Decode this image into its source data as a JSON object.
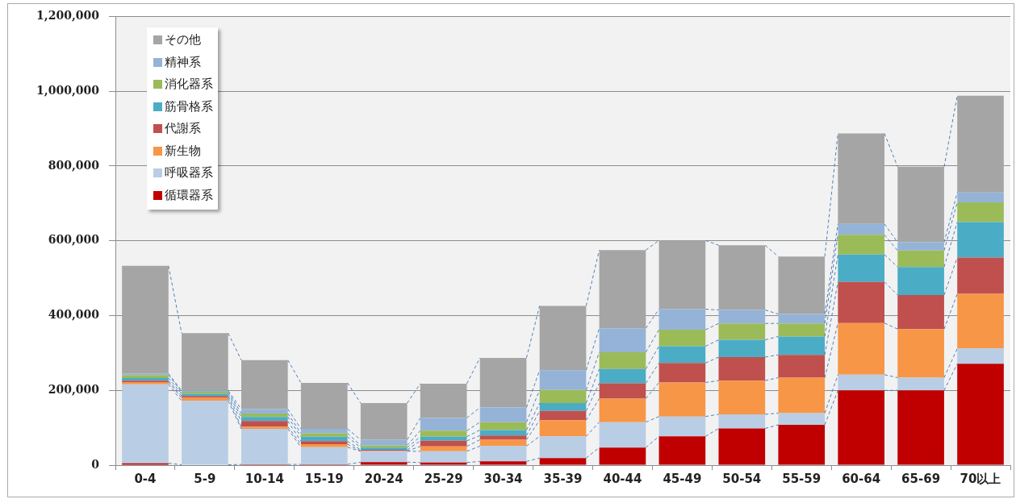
{
  "chart_data": {
    "type": "bar",
    "stacked": true,
    "grid": "y",
    "legend": "top left",
    "categories": [
      "0-4",
      "5-9",
      "10-14",
      "15-19",
      "20-24",
      "25-29",
      "30-34",
      "35-39",
      "40-44",
      "45-49",
      "50-54",
      "55-59",
      "60-64",
      "65-69",
      "70以上"
    ],
    "ylim": [
      0,
      1200000
    ],
    "yticks": [
      0,
      {
        "value": 200000,
        "label": "200,000"
      },
      {
        "value": 400000,
        "label": "400,000"
      },
      {
        "value": 600000,
        "label": "600,000"
      },
      {
        "value": 800000,
        "label": "800,000"
      },
      {
        "value": 1000000,
        "label": "1,000,000"
      },
      {
        "value": 1200000,
        "label": "1,200,000"
      }
    ],
    "series": [
      {
        "name": "循環器系",
        "color": "#c00000",
        "values": [
          5000,
          1000,
          2000,
          2000,
          8000,
          7000,
          10000,
          19000,
          47000,
          77000,
          98000,
          108000,
          200000,
          200000,
          271000
        ]
      },
      {
        "name": "呼吸器系",
        "color": "#b9cde5",
        "values": [
          211000,
          171000,
          95000,
          46000,
          29000,
          30000,
          41000,
          58000,
          68000,
          53000,
          38000,
          31000,
          42000,
          34000,
          41000
        ]
      },
      {
        "name": "新生物",
        "color": "#f79646",
        "values": [
          6000,
          8000,
          6000,
          8000,
          1000,
          13000,
          17000,
          43000,
          63000,
          91000,
          90000,
          95000,
          138000,
          130000,
          146000
        ]
      },
      {
        "name": "代謝系",
        "color": "#c0504d",
        "values": [
          4000,
          5000,
          15000,
          8000,
          3000,
          15000,
          11000,
          25000,
          41000,
          52000,
          63000,
          61000,
          110000,
          91000,
          97000
        ]
      },
      {
        "name": "筋骨格系",
        "color": "#4bacc6",
        "values": [
          7000,
          6000,
          11000,
          12000,
          6000,
          11000,
          15000,
          21000,
          38000,
          45000,
          46000,
          49000,
          73000,
          75000,
          95000
        ]
      },
      {
        "name": "消化器系",
        "color": "#9bbb59",
        "values": [
          8000,
          5000,
          9000,
          9000,
          6000,
          16000,
          21000,
          35000,
          45000,
          44000,
          44000,
          35000,
          53000,
          44000,
          53000
        ]
      },
      {
        "name": "精神系",
        "color": "#95b3d7",
        "values": [
          4000,
          3000,
          12000,
          12000,
          15000,
          34000,
          39000,
          53000,
          64000,
          55000,
          36000,
          25000,
          29000,
          22000,
          26000
        ]
      },
      {
        "name": "その他",
        "color": "#a5a5a5",
        "values": [
          288000,
          154000,
          131000,
          123000,
          98000,
          92000,
          133000,
          172000,
          209000,
          184000,
          173000,
          154000,
          242000,
          202000,
          259000
        ]
      }
    ]
  }
}
